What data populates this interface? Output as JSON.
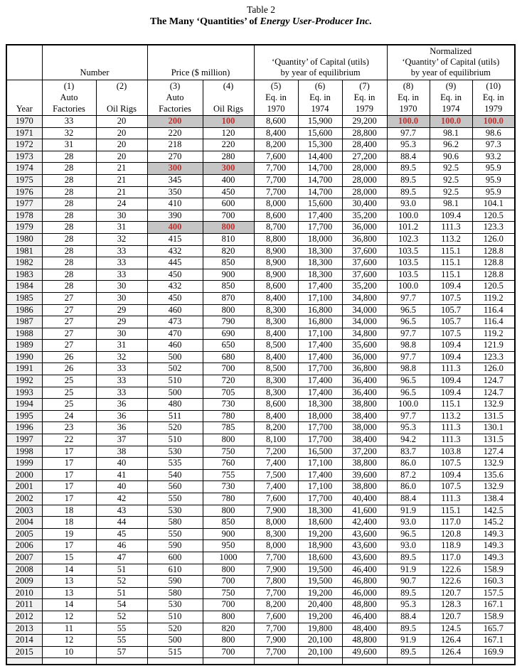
{
  "title": {
    "line1": "Table 2",
    "line2_prefix": "The Many ‘Quantities’ of ",
    "line2_emphasis": "Energy User-Producer Inc."
  },
  "table": {
    "group_headers": [
      {
        "label": "",
        "colspan": 1
      },
      {
        "label": "Number",
        "colspan": 2
      },
      {
        "label": "Price ($ million)",
        "colspan": 2
      },
      {
        "label": "‘Quantity’ of Capital (utils)\nby year of equilibrium",
        "colspan": 3
      },
      {
        "label": "Normalized\n‘Quantity’ of Capital (utils)\nby year of equilibrium",
        "colspan": 3
      }
    ],
    "column_headers": [
      "Year",
      "(1)\nAuto\nFactories",
      "(2)\n\nOil Rigs",
      "(3)\nAuto\nFactories",
      "(4)\n\nOil Rigs",
      "(5)\nEq. in\n1970",
      "(6)\nEq. in\n1974",
      "(7)\nEq. in\n1979",
      "(8)\nEq. in\n1970",
      "(9)\nEq. in\n1974",
      "(10)\nEq. in\n1979"
    ],
    "rows": [
      [
        "1970",
        "33",
        "20",
        "200",
        "100",
        "8,600",
        "15,900",
        "29,200",
        "100.0",
        "100.0",
        "100.0"
      ],
      [
        "1971",
        "32",
        "20",
        "220",
        "120",
        "8,400",
        "15,600",
        "28,800",
        "97.7",
        "98.1",
        "98.6"
      ],
      [
        "1972",
        "31",
        "20",
        "218",
        "220",
        "8,200",
        "15,300",
        "28,400",
        "95.3",
        "96.2",
        "97.3"
      ],
      [
        "1973",
        "28",
        "20",
        "270",
        "280",
        "7,600",
        "14,400",
        "27,200",
        "88.4",
        "90.6",
        "93.2"
      ],
      [
        "1974",
        "28",
        "21",
        "300",
        "300",
        "7,700",
        "14,700",
        "28,000",
        "89.5",
        "92.5",
        "95.9"
      ],
      [
        "1975",
        "28",
        "21",
        "345",
        "400",
        "7,700",
        "14,700",
        "28,000",
        "89.5",
        "92.5",
        "95.9"
      ],
      [
        "1976",
        "28",
        "21",
        "350",
        "450",
        "7,700",
        "14,700",
        "28,000",
        "89.5",
        "92.5",
        "95.9"
      ],
      [
        "1977",
        "28",
        "24",
        "410",
        "600",
        "8,000",
        "15,600",
        "30,400",
        "93.0",
        "98.1",
        "104.1"
      ],
      [
        "1978",
        "28",
        "30",
        "390",
        "700",
        "8,600",
        "17,400",
        "35,200",
        "100.0",
        "109.4",
        "120.5"
      ],
      [
        "1979",
        "28",
        "31",
        "400",
        "800",
        "8,700",
        "17,700",
        "36,000",
        "101.2",
        "111.3",
        "123.3"
      ],
      [
        "1980",
        "28",
        "32",
        "415",
        "810",
        "8,800",
        "18,000",
        "36,800",
        "102.3",
        "113.2",
        "126.0"
      ],
      [
        "1981",
        "28",
        "33",
        "432",
        "820",
        "8,900",
        "18,300",
        "37,600",
        "103.5",
        "115.1",
        "128.8"
      ],
      [
        "1982",
        "28",
        "33",
        "445",
        "850",
        "8,900",
        "18,300",
        "37,600",
        "103.5",
        "115.1",
        "128.8"
      ],
      [
        "1983",
        "28",
        "33",
        "450",
        "900",
        "8,900",
        "18,300",
        "37,600",
        "103.5",
        "115.1",
        "128.8"
      ],
      [
        "1984",
        "28",
        "30",
        "432",
        "850",
        "8,600",
        "17,400",
        "35,200",
        "100.0",
        "109.4",
        "120.5"
      ],
      [
        "1985",
        "27",
        "30",
        "450",
        "870",
        "8,400",
        "17,100",
        "34,800",
        "97.7",
        "107.5",
        "119.2"
      ],
      [
        "1986",
        "27",
        "29",
        "460",
        "800",
        "8,300",
        "16,800",
        "34,000",
        "96.5",
        "105.7",
        "116.4"
      ],
      [
        "1987",
        "27",
        "29",
        "473",
        "790",
        "8,300",
        "16,800",
        "34,000",
        "96.5",
        "105.7",
        "116.4"
      ],
      [
        "1988",
        "27",
        "30",
        "470",
        "690",
        "8,400",
        "17,100",
        "34,800",
        "97.7",
        "107.5",
        "119.2"
      ],
      [
        "1989",
        "27",
        "31",
        "460",
        "650",
        "8,500",
        "17,400",
        "35,600",
        "98.8",
        "109.4",
        "121.9"
      ],
      [
        "1990",
        "26",
        "32",
        "500",
        "680",
        "8,400",
        "17,400",
        "36,000",
        "97.7",
        "109.4",
        "123.3"
      ],
      [
        "1991",
        "26",
        "33",
        "502",
        "700",
        "8,500",
        "17,700",
        "36,800",
        "98.8",
        "111.3",
        "126.0"
      ],
      [
        "1992",
        "25",
        "33",
        "510",
        "720",
        "8,300",
        "17,400",
        "36,400",
        "96.5",
        "109.4",
        "124.7"
      ],
      [
        "1993",
        "25",
        "33",
        "500",
        "705",
        "8,300",
        "17,400",
        "36,400",
        "96.5",
        "109.4",
        "124.7"
      ],
      [
        "1994",
        "25",
        "36",
        "480",
        "730",
        "8,600",
        "18,300",
        "38,800",
        "100.0",
        "115.1",
        "132.9"
      ],
      [
        "1995",
        "24",
        "36",
        "511",
        "780",
        "8,400",
        "18,000",
        "38,400",
        "97.7",
        "113.2",
        "131.5"
      ],
      [
        "1996",
        "23",
        "36",
        "520",
        "785",
        "8,200",
        "17,700",
        "38,000",
        "95.3",
        "111.3",
        "130.1"
      ],
      [
        "1997",
        "22",
        "37",
        "510",
        "800",
        "8,100",
        "17,700",
        "38,400",
        "94.2",
        "111.3",
        "131.5"
      ],
      [
        "1998",
        "17",
        "38",
        "530",
        "750",
        "7,200",
        "16,500",
        "37,200",
        "83.7",
        "103.8",
        "127.4"
      ],
      [
        "1999",
        "17",
        "40",
        "535",
        "760",
        "7,400",
        "17,100",
        "38,800",
        "86.0",
        "107.5",
        "132.9"
      ],
      [
        "2000",
        "17",
        "41",
        "540",
        "755",
        "7,500",
        "17,400",
        "39,600",
        "87.2",
        "109.4",
        "135.6"
      ],
      [
        "2001",
        "17",
        "40",
        "560",
        "730",
        "7,400",
        "17,100",
        "38,800",
        "86.0",
        "107.5",
        "132.9"
      ],
      [
        "2002",
        "17",
        "42",
        "550",
        "780",
        "7,600",
        "17,700",
        "40,400",
        "88.4",
        "111.3",
        "138.4"
      ],
      [
        "2003",
        "18",
        "43",
        "530",
        "800",
        "7,900",
        "18,300",
        "41,600",
        "91.9",
        "115.1",
        "142.5"
      ],
      [
        "2004",
        "18",
        "44",
        "580",
        "850",
        "8,000",
        "18,600",
        "42,400",
        "93.0",
        "117.0",
        "145.2"
      ],
      [
        "2005",
        "19",
        "45",
        "550",
        "900",
        "8,300",
        "19,200",
        "43,600",
        "96.5",
        "120.8",
        "149.3"
      ],
      [
        "2006",
        "17",
        "46",
        "590",
        "950",
        "8,000",
        "18,900",
        "43,600",
        "93.0",
        "118.9",
        "149.3"
      ],
      [
        "2007",
        "15",
        "47",
        "600",
        "1000",
        "7,700",
        "18,600",
        "43,600",
        "89.5",
        "117.0",
        "149.3"
      ],
      [
        "2008",
        "14",
        "51",
        "610",
        "800",
        "7,900",
        "19,500",
        "46,400",
        "91.9",
        "122.6",
        "158.9"
      ],
      [
        "2009",
        "13",
        "52",
        "590",
        "700",
        "7,800",
        "19,500",
        "46,800",
        "90.7",
        "122.6",
        "160.3"
      ],
      [
        "2010",
        "13",
        "51",
        "580",
        "750",
        "7,700",
        "19,200",
        "46,000",
        "89.5",
        "120.7",
        "157.5"
      ],
      [
        "2011",
        "14",
        "54",
        "530",
        "700",
        "8,200",
        "20,400",
        "48,800",
        "95.3",
        "128.3",
        "167.1"
      ],
      [
        "2012",
        "12",
        "52",
        "510",
        "800",
        "7,600",
        "19,200",
        "46,400",
        "88.4",
        "120.7",
        "158.9"
      ],
      [
        "2013",
        "11",
        "55",
        "520",
        "820",
        "7,700",
        "19,800",
        "48,400",
        "89.5",
        "124.5",
        "165.7"
      ],
      [
        "2014",
        "12",
        "55",
        "500",
        "800",
        "7,900",
        "20,100",
        "48,800",
        "91.9",
        "126.4",
        "167.1"
      ],
      [
        "2015",
        "10",
        "57",
        "515",
        "700",
        "7,700",
        "20,100",
        "49,600",
        "89.5",
        "126.4",
        "169.9"
      ]
    ],
    "highlight_cells": {
      "1970": [
        3,
        4,
        8,
        9,
        10
      ],
      "1974": [
        3,
        4
      ],
      "1979": [
        3,
        4
      ]
    },
    "colors": {
      "highlight_bg": "#c6c6c6",
      "highlight_text": "#be312f",
      "year_column_bg": "#f1f1f1"
    }
  }
}
